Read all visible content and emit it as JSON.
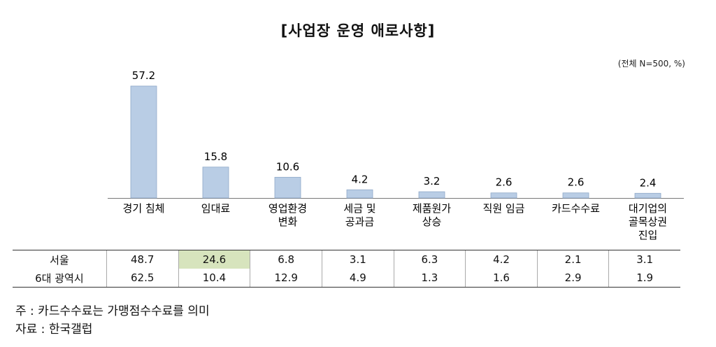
{
  "title": "[사업장 운영 애로사항]",
  "unit_note": "(전체 N=500, %)",
  "chart_data": {
    "type": "bar",
    "categories": [
      [
        "경기 침체"
      ],
      [
        "임대료"
      ],
      [
        "영업환경",
        "변화"
      ],
      [
        "세금 및",
        "공과금"
      ],
      [
        "제품원가",
        "상승"
      ],
      [
        "직원 임금"
      ],
      [
        "카드수수료"
      ],
      [
        "대기업의",
        "골목상권",
        "진입"
      ]
    ],
    "values": [
      57.2,
      15.8,
      10.6,
      4.2,
      3.2,
      2.6,
      2.6,
      2.4
    ],
    "value_labels": [
      "57.2",
      "15.8",
      "10.6",
      "4.2",
      "3.2",
      "2.6",
      "2.6",
      "2.4"
    ],
    "ylim": [
      0,
      60
    ],
    "bar_color": "#b9cde5",
    "bar_stroke": "#8ea9c8"
  },
  "table": {
    "rows": [
      {
        "label": "서울",
        "values": [
          "48.7",
          "24.6",
          "6.8",
          "3.1",
          "6.3",
          "4.2",
          "2.1",
          "3.1"
        ],
        "highlight_index": 1
      },
      {
        "label": "6대 광역시",
        "values": [
          "62.5",
          "10.4",
          "12.9",
          "4.9",
          "1.3",
          "1.6",
          "2.9",
          "1.9"
        ],
        "highlight_index": -1
      }
    ],
    "highlight_color": "#d7e4bd"
  },
  "notes": {
    "note_line": "주   : 카드수수료는 가맹점수수료를 의미",
    "source_line": "자료 : 한국갤럽"
  }
}
